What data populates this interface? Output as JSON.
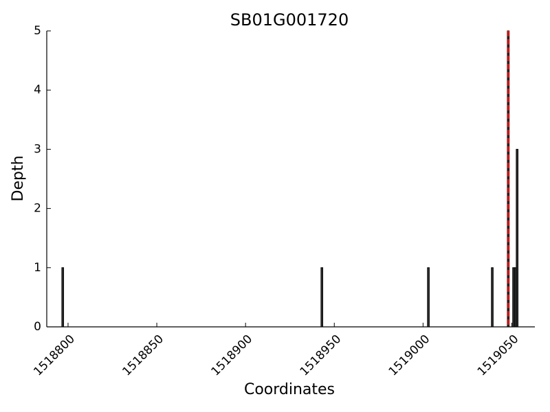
{
  "chart_data": {
    "type": "bar",
    "title": "SB01G001720",
    "x_label": "Coordinates",
    "y_label": "Depth",
    "x": [
      1518797,
      1518943,
      1519003,
      1519039,
      1519048,
      1519051,
      1519052,
      1519053
    ],
    "values": [
      1,
      1,
      1,
      1,
      5,
      1,
      1,
      3
    ],
    "color": "#333333",
    "vline": {
      "x": 1519048,
      "color": "#ff0000"
    },
    "xlim": [
      1518788,
      1519063
    ],
    "xticks": [
      1518800,
      1518850,
      1518900,
      1518950,
      1519000,
      1519050
    ],
    "ylim": [
      0,
      5
    ],
    "yticks": [
      0,
      1,
      2,
      3,
      4,
      5
    ],
    "grid": false
  }
}
